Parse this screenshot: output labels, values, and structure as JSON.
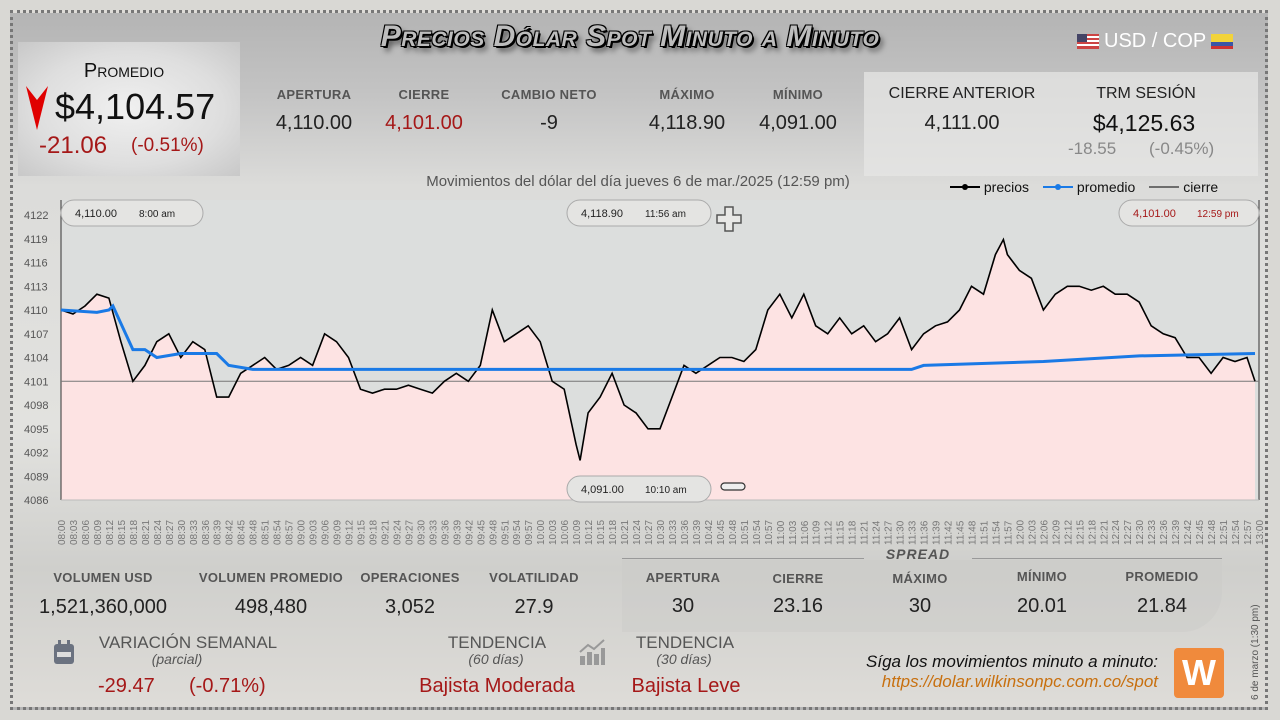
{
  "header": {
    "title": "Precios Dólar Spot Minuto a Minuto",
    "pair": "USD / COP",
    "flag_left": "us-flag-icon",
    "flag_right": "colombia-flag-icon"
  },
  "promedio": {
    "label": "Promedio",
    "value": "$4,104.57",
    "change": "-21.06",
    "change_pct": "(-0.51%)",
    "trend_icon": "down-arrow-icon",
    "trend_color": "#e00000"
  },
  "stats": [
    {
      "label": "APERTURA",
      "value": "4,110.00"
    },
    {
      "label": "CIERRE",
      "value": "4,101.00",
      "color": "#a51818"
    },
    {
      "label": "CAMBIO NETO",
      "value": "-9"
    },
    {
      "label": "MÁXIMO",
      "value": "4,118.90"
    },
    {
      "label": "MÍNIMO",
      "value": "4,091.00"
    }
  ],
  "cierre_anterior": {
    "label": "CIERRE ANTERIOR",
    "value": "4,111.00"
  },
  "trm": {
    "label": "TRM SESIÓN",
    "value": "$4,125.63",
    "change": "-18.55",
    "change_pct": "(-0.45%)"
  },
  "bottom_stats": [
    {
      "label": "VOLUMEN USD",
      "value": "1,521,360,000"
    },
    {
      "label": "VOLUMEN PROMEDIO",
      "value": "498,480"
    },
    {
      "label": "OPERACIONES",
      "value": "3,052"
    },
    {
      "label": "VOLATILIDAD",
      "value": "27.9"
    }
  ],
  "spread": {
    "title": "SPREAD",
    "items": [
      {
        "label": "APERTURA",
        "value": "30"
      },
      {
        "label": "CIERRE",
        "value": "23.16"
      },
      {
        "label": "MÁXIMO",
        "value": "30"
      },
      {
        "label": "MÍNIMO",
        "value": "20.01"
      },
      {
        "label": "PROMEDIO",
        "value": "21.84"
      }
    ]
  },
  "variacion": {
    "label": "VARIACIÓN SEMANAL",
    "sub": "(parcial)",
    "value": "-29.47",
    "pct": "(-0.71%)",
    "icon": "calendar-icon"
  },
  "tendencia60": {
    "label": "TENDENCIA",
    "sub": "(60 días)",
    "value": "Bajista Moderada"
  },
  "tendencia30": {
    "label": "TENDENCIA",
    "sub": "(30 días)",
    "value": "Bajista Leve",
    "icon": "bar-chart-trend-icon"
  },
  "footer": {
    "cta": "Síga los movimientos minuto a minuto:",
    "url": "https://dolar.wilkinsonpc.com.co/spot",
    "logo": "W",
    "side_note": "6 de marzo (1:30 pm)"
  },
  "chart_data": {
    "type": "line",
    "title": "Movimientos del dólar del día jueves 6 de mar./2025 (12:59 pm)",
    "legend": [
      {
        "name": "precios",
        "color": "#000000"
      },
      {
        "name": "promedio",
        "color": "#1a7ae6"
      },
      {
        "name": "cierre",
        "color": "#000000"
      }
    ],
    "legend_position": "top-right",
    "ylim": [
      4086,
      4122
    ],
    "y_ticks": [
      4122,
      4119,
      4116,
      4113,
      4110,
      4107,
      4104,
      4101,
      4098,
      4095,
      4092,
      4089,
      4086
    ],
    "x_ticks": [
      "08:00",
      "08:03",
      "08:06",
      "08:09",
      "08:12",
      "08:15",
      "08:18",
      "08:21",
      "08:24",
      "08:27",
      "08:30",
      "08:33",
      "08:36",
      "08:39",
      "08:42",
      "08:45",
      "08:48",
      "08:51",
      "08:54",
      "08:57",
      "09:00",
      "09:03",
      "09:06",
      "09:09",
      "09:12",
      "09:15",
      "09:18",
      "09:21",
      "09:24",
      "09:27",
      "09:30",
      "09:33",
      "09:36",
      "09:39",
      "09:42",
      "09:45",
      "09:48",
      "09:51",
      "09:54",
      "09:57",
      "10:00",
      "10:03",
      "10:06",
      "10:09",
      "10:12",
      "10:15",
      "10:18",
      "10:21",
      "10:24",
      "10:27",
      "10:30",
      "10:33",
      "10:36",
      "10:39",
      "10:42",
      "10:45",
      "10:48",
      "10:51",
      "10:54",
      "10:57",
      "11:00",
      "11:03",
      "11:06",
      "11:09",
      "11:12",
      "11:15",
      "11:18",
      "11:21",
      "11:24",
      "11:27",
      "11:30",
      "11:33",
      "11:36",
      "11:39",
      "11:42",
      "11:45",
      "11:48",
      "11:51",
      "11:54",
      "11:57",
      "12:00",
      "12:03",
      "12:06",
      "12:09",
      "12:12",
      "12:15",
      "12:18",
      "12:21",
      "12:24",
      "12:27",
      "12:30",
      "12:33",
      "12:36",
      "12:39",
      "12:42",
      "12:45",
      "12:48",
      "12:51",
      "12:54",
      "12:57",
      "13:00"
    ],
    "xlim": [
      "08:00",
      "13:00"
    ],
    "cierre_line": 4101,
    "series": [
      {
        "name": "precios",
        "points": [
          [
            "08:00",
            4110
          ],
          [
            "08:03",
            4109.5
          ],
          [
            "08:06",
            4110.5
          ],
          [
            "08:09",
            4112
          ],
          [
            "08:12",
            4111.5
          ],
          [
            "08:15",
            4106
          ],
          [
            "08:18",
            4101
          ],
          [
            "08:21",
            4103
          ],
          [
            "08:24",
            4106
          ],
          [
            "08:27",
            4107
          ],
          [
            "08:30",
            4104
          ],
          [
            "08:33",
            4106
          ],
          [
            "08:36",
            4105
          ],
          [
            "08:39",
            4099
          ],
          [
            "08:42",
            4099
          ],
          [
            "08:45",
            4102
          ],
          [
            "08:48",
            4103
          ],
          [
            "08:51",
            4104
          ],
          [
            "08:54",
            4102.5
          ],
          [
            "08:57",
            4103
          ],
          [
            "09:00",
            4104
          ],
          [
            "09:03",
            4103
          ],
          [
            "09:06",
            4107
          ],
          [
            "09:09",
            4106
          ],
          [
            "09:12",
            4104
          ],
          [
            "09:15",
            4100
          ],
          [
            "09:18",
            4099.5
          ],
          [
            "09:21",
            4100
          ],
          [
            "09:24",
            4100
          ],
          [
            "09:27",
            4100.5
          ],
          [
            "09:30",
            4100
          ],
          [
            "09:33",
            4099.5
          ],
          [
            "09:36",
            4101
          ],
          [
            "09:39",
            4102
          ],
          [
            "09:42",
            4101
          ],
          [
            "09:45",
            4103
          ],
          [
            "09:48",
            4110
          ],
          [
            "09:51",
            4106
          ],
          [
            "09:54",
            4107
          ],
          [
            "09:57",
            4108
          ],
          [
            "10:00",
            4106
          ],
          [
            "10:03",
            4101
          ],
          [
            "10:06",
            4100
          ],
          [
            "10:09",
            4093
          ],
          [
            "10:10",
            4091
          ],
          [
            "10:12",
            4097
          ],
          [
            "10:15",
            4099
          ],
          [
            "10:18",
            4102
          ],
          [
            "10:21",
            4098
          ],
          [
            "10:24",
            4097
          ],
          [
            "10:27",
            4095
          ],
          [
            "10:30",
            4095
          ],
          [
            "10:33",
            4099
          ],
          [
            "10:36",
            4103
          ],
          [
            "10:39",
            4102
          ],
          [
            "10:42",
            4103
          ],
          [
            "10:45",
            4104
          ],
          [
            "10:48",
            4104
          ],
          [
            "10:51",
            4103.5
          ],
          [
            "10:54",
            4105
          ],
          [
            "10:57",
            4110
          ],
          [
            "11:00",
            4112
          ],
          [
            "11:03",
            4109
          ],
          [
            "11:06",
            4112
          ],
          [
            "11:09",
            4108
          ],
          [
            "11:12",
            4107
          ],
          [
            "11:15",
            4109
          ],
          [
            "11:18",
            4107
          ],
          [
            "11:21",
            4108
          ],
          [
            "11:24",
            4106
          ],
          [
            "11:27",
            4107
          ],
          [
            "11:30",
            4109
          ],
          [
            "11:33",
            4105
          ],
          [
            "11:36",
            4107
          ],
          [
            "11:39",
            4108
          ],
          [
            "11:42",
            4108.5
          ],
          [
            "11:45",
            4110
          ],
          [
            "11:48",
            4113
          ],
          [
            "11:51",
            4112
          ],
          [
            "11:54",
            4117
          ],
          [
            "11:56",
            4118.9
          ],
          [
            "11:57",
            4117
          ],
          [
            "12:00",
            4115
          ],
          [
            "12:03",
            4114
          ],
          [
            "12:06",
            4110
          ],
          [
            "12:09",
            4112
          ],
          [
            "12:12",
            4113
          ],
          [
            "12:15",
            4113
          ],
          [
            "12:18",
            4112.5
          ],
          [
            "12:21",
            4113
          ],
          [
            "12:24",
            4112
          ],
          [
            "12:27",
            4112
          ],
          [
            "12:30",
            4111
          ],
          [
            "12:33",
            4108
          ],
          [
            "12:36",
            4107
          ],
          [
            "12:39",
            4106.5
          ],
          [
            "12:42",
            4104
          ],
          [
            "12:45",
            4104
          ],
          [
            "12:48",
            4102
          ],
          [
            "12:51",
            4104
          ],
          [
            "12:54",
            4103.5
          ],
          [
            "12:57",
            4104
          ],
          [
            "12:59",
            4101
          ]
        ]
      },
      {
        "name": "promedio",
        "points": [
          [
            "08:00",
            4110
          ],
          [
            "08:09",
            4109.7
          ],
          [
            "08:12",
            4110
          ],
          [
            "08:13",
            4110.5
          ],
          [
            "08:18",
            4105
          ],
          [
            "08:21",
            4105
          ],
          [
            "08:24",
            4104
          ],
          [
            "08:30",
            4104.5
          ],
          [
            "08:39",
            4104.5
          ],
          [
            "08:42",
            4103
          ],
          [
            "08:48",
            4102.5
          ],
          [
            "11:33",
            4102.5
          ],
          [
            "11:36",
            4103
          ],
          [
            "12:06",
            4103.5
          ],
          [
            "12:30",
            4104.2
          ],
          [
            "12:59",
            4104.5
          ]
        ]
      }
    ],
    "annotations": [
      {
        "kind": "apertura",
        "value": "4,110.00",
        "time": "8:00 am"
      },
      {
        "kind": "maximo",
        "value": "4,118.90",
        "time": "11:56 am"
      },
      {
        "kind": "minimo",
        "value": "4,091.00",
        "time": "10:10 am"
      },
      {
        "kind": "cierre",
        "value": "4,101.00",
        "time": "12:59 pm"
      }
    ]
  }
}
